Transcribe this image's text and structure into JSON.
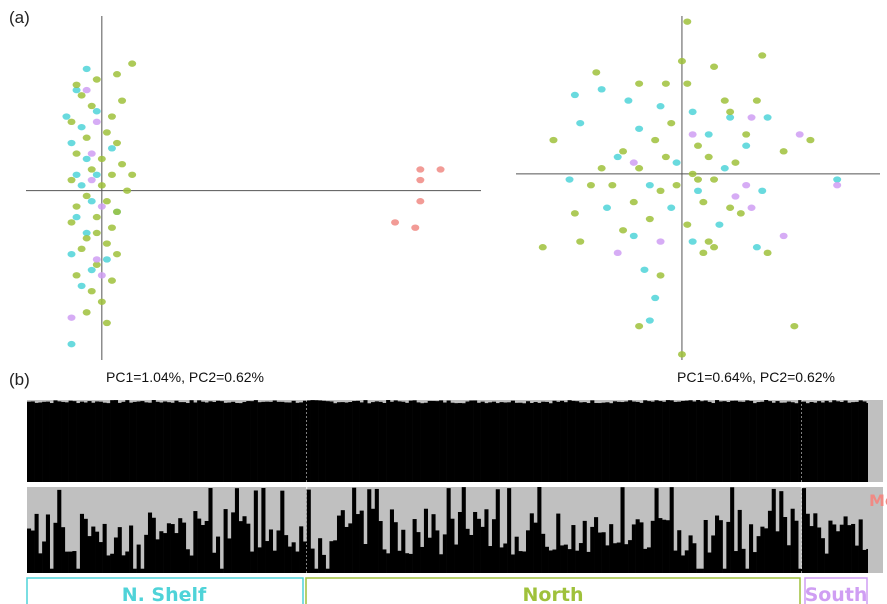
{
  "panels": {
    "a": "(a)",
    "b": "(b)"
  },
  "colors": {
    "nshelf": "#4fd3d8",
    "north": "#9fc13b",
    "south": "#cf9ef3",
    "me": "#f08a84",
    "bar_dark": "#000000",
    "bar_light": "#c0c0c0",
    "divider": "#ffffff"
  },
  "regions": {
    "nshelf": "N. Shelf",
    "north": "North",
    "south": "South",
    "me": "Me"
  },
  "chart_data": [
    {
      "type": "scatter",
      "annotation": "PC1=1.04%, PC2=0.62%",
      "xlabel": "",
      "ylabel": "",
      "note_axes": "crosshair axes at origin, no ticks",
      "xlim": [
        -1.5,
        7.5
      ],
      "ylim": [
        -3.2,
        3.3
      ],
      "series": [
        {
          "group": "nshelf",
          "points": [
            [
              -0.5,
              1.9
            ],
            [
              -0.4,
              1.2
            ],
            [
              -0.6,
              0.9
            ],
            [
              -0.3,
              0.6
            ],
            [
              -0.5,
              0.3
            ],
            [
              -0.4,
              0.1
            ],
            [
              -0.2,
              -0.2
            ],
            [
              -0.5,
              -0.5
            ],
            [
              -0.3,
              -0.8
            ],
            [
              -0.6,
              -1.2
            ],
            [
              -0.2,
              -1.5
            ],
            [
              -0.4,
              -1.8
            ],
            [
              -0.6,
              -2.9
            ],
            [
              -0.1,
              1.5
            ],
            [
              -0.3,
              2.3
            ],
            [
              0.2,
              0.8
            ],
            [
              0.3,
              -0.4
            ],
            [
              0.1,
              -1.3
            ],
            [
              -0.7,
              1.4
            ],
            [
              -0.1,
              0.3
            ]
          ]
        },
        {
          "group": "north",
          "points": [
            [
              -0.1,
              2.1
            ],
            [
              0.3,
              2.2
            ],
            [
              -0.4,
              1.8
            ],
            [
              -0.2,
              1.6
            ],
            [
              0.2,
              1.4
            ],
            [
              -0.6,
              1.3
            ],
            [
              0.1,
              1.1
            ],
            [
              -0.3,
              1.0
            ],
            [
              0.3,
              0.9
            ],
            [
              -0.5,
              0.7
            ],
            [
              0.0,
              0.6
            ],
            [
              0.4,
              0.5
            ],
            [
              -0.2,
              0.4
            ],
            [
              0.2,
              0.3
            ],
            [
              -0.6,
              0.2
            ],
            [
              0.0,
              0.1
            ],
            [
              0.5,
              0.0
            ],
            [
              -0.3,
              -0.1
            ],
            [
              0.1,
              -0.2
            ],
            [
              -0.5,
              -0.3
            ],
            [
              0.3,
              -0.4
            ],
            [
              -0.1,
              -0.5
            ],
            [
              -0.6,
              -0.6
            ],
            [
              0.2,
              -0.7
            ],
            [
              -0.3,
              -0.9
            ],
            [
              0.1,
              -1.0
            ],
            [
              -0.4,
              -1.1
            ],
            [
              0.3,
              -1.2
            ],
            [
              -0.1,
              -1.4
            ],
            [
              -0.5,
              -1.6
            ],
            [
              0.2,
              -1.7
            ],
            [
              -0.2,
              -1.9
            ],
            [
              0.0,
              -2.1
            ],
            [
              -0.3,
              -2.3
            ],
            [
              0.1,
              -2.5
            ],
            [
              0.6,
              2.4
            ],
            [
              -0.5,
              2.0
            ],
            [
              0.4,
              1.7
            ],
            [
              -0.1,
              -0.8
            ],
            [
              0.6,
              0.3
            ]
          ]
        },
        {
          "group": "south",
          "points": [
            [
              -0.1,
              1.3
            ],
            [
              -0.2,
              0.7
            ],
            [
              0.0,
              -0.3
            ],
            [
              -0.1,
              -1.3
            ],
            [
              0.0,
              -1.6
            ],
            [
              -0.6,
              -2.4
            ],
            [
              -0.2,
              0.2
            ],
            [
              -0.3,
              1.9
            ]
          ]
        },
        {
          "group": "me",
          "points": [
            [
              6.3,
              0.4
            ],
            [
              6.7,
              0.4
            ],
            [
              6.3,
              0.2
            ],
            [
              6.3,
              -0.2
            ],
            [
              6.2,
              -0.7
            ],
            [
              5.8,
              -0.6
            ]
          ]
        }
      ]
    },
    {
      "type": "scatter",
      "annotation": "PC1=0.64%, PC2=0.62%",
      "xlabel": "",
      "ylabel": "",
      "note_axes": "crosshair axes at origin, no ticks",
      "xlim": [
        -3.1,
        3.7
      ],
      "ylim": [
        -3.3,
        2.8
      ],
      "series": [
        {
          "group": "nshelf",
          "points": [
            [
              -1.5,
              1.5
            ],
            [
              -1.0,
              1.3
            ],
            [
              -0.4,
              1.2
            ],
            [
              0.2,
              1.1
            ],
            [
              0.9,
              1.0
            ],
            [
              1.6,
              1.0
            ],
            [
              -1.9,
              0.9
            ],
            [
              -0.8,
              0.8
            ],
            [
              0.5,
              0.7
            ],
            [
              1.2,
              0.5
            ],
            [
              -1.2,
              0.3
            ],
            [
              -0.1,
              0.2
            ],
            [
              0.8,
              0.1
            ],
            [
              -2.1,
              -0.1
            ],
            [
              -0.6,
              -0.2
            ],
            [
              0.3,
              -0.3
            ],
            [
              1.5,
              -0.3
            ],
            [
              -1.4,
              -0.6
            ],
            [
              -0.2,
              -0.6
            ],
            [
              0.7,
              -0.9
            ],
            [
              -0.9,
              -1.1
            ],
            [
              0.2,
              -1.2
            ],
            [
              1.4,
              -1.3
            ],
            [
              -0.7,
              -1.7
            ],
            [
              -0.5,
              -2.2
            ],
            [
              -0.6,
              -2.6
            ],
            [
              2.9,
              -0.1
            ],
            [
              -2.0,
              1.4
            ]
          ]
        },
        {
          "group": "north",
          "points": [
            [
              0.0,
              2.0
            ],
            [
              0.1,
              1.6
            ],
            [
              0.9,
              1.1
            ],
            [
              -0.2,
              0.9
            ],
            [
              -0.5,
              0.6
            ],
            [
              0.3,
              0.5
            ],
            [
              -1.1,
              0.4
            ],
            [
              -0.3,
              0.3
            ],
            [
              0.5,
              0.3
            ],
            [
              1.0,
              0.2
            ],
            [
              -0.8,
              0.1
            ],
            [
              0.2,
              0.0
            ],
            [
              0.6,
              -0.1
            ],
            [
              -1.7,
              -0.2
            ],
            [
              -0.4,
              -0.3
            ],
            [
              0.4,
              -0.5
            ],
            [
              -0.9,
              -0.5
            ],
            [
              0.9,
              -0.6
            ],
            [
              -2.0,
              -0.7
            ],
            [
              -0.6,
              -0.8
            ],
            [
              0.1,
              -0.9
            ],
            [
              0.6,
              -1.3
            ],
            [
              -1.1,
              -1.0
            ],
            [
              -1.9,
              -1.2
            ],
            [
              0.4,
              -1.4
            ],
            [
              1.6,
              -1.4
            ],
            [
              -0.4,
              -1.8
            ],
            [
              -0.8,
              -2.7
            ],
            [
              0.0,
              -3.2
            ],
            [
              2.1,
              -2.7
            ],
            [
              1.2,
              0.7
            ],
            [
              -2.4,
              0.6
            ],
            [
              -1.6,
              1.8
            ],
            [
              0.6,
              1.9
            ],
            [
              1.4,
              1.3
            ],
            [
              -0.1,
              -0.2
            ],
            [
              0.8,
              1.3
            ],
            [
              -1.3,
              -0.2
            ],
            [
              1.9,
              0.4
            ],
            [
              -0.3,
              1.6
            ],
            [
              0.3,
              -0.1
            ],
            [
              -1.5,
              0.1
            ],
            [
              0.5,
              -1.2
            ],
            [
              2.4,
              0.6
            ],
            [
              -2.6,
              -1.3
            ],
            [
              -0.8,
              1.6
            ],
            [
              1.1,
              -0.7
            ],
            [
              0.1,
              2.7
            ],
            [
              1.5,
              2.1
            ]
          ]
        },
        {
          "group": "south",
          "points": [
            [
              1.3,
              1.0
            ],
            [
              0.2,
              0.7
            ],
            [
              -0.9,
              0.2
            ],
            [
              1.0,
              -0.4
            ],
            [
              1.3,
              -0.6
            ],
            [
              -0.4,
              -1.2
            ],
            [
              1.9,
              -1.1
            ],
            [
              2.9,
              -0.2
            ],
            [
              -1.2,
              -1.4
            ],
            [
              2.2,
              0.7
            ],
            [
              1.2,
              -0.2
            ]
          ]
        }
      ]
    },
    {
      "type": "bar",
      "stacked": true,
      "ylim": [
        0,
        1
      ],
      "colors_by_cluster": [
        "bar_dark",
        "bar_light"
      ],
      "groups": [
        "nshelf",
        "north",
        "south"
      ],
      "group_sizes": [
        74,
        131,
        18
      ],
      "note": "K=2 ancestry proportions (dark cluster), all individuals near 0.97-1.0"
    },
    {
      "type": "bar",
      "stacked": true,
      "ylim": [
        0,
        1
      ],
      "colors_by_cluster": [
        "bar_dark",
        "bar_light"
      ],
      "groups": [
        "nshelf",
        "north",
        "south"
      ],
      "group_sizes": [
        74,
        131,
        18
      ],
      "note": "second ancestry plot, dark cluster proportions vary between ~0.1 and ~1.0"
    }
  ]
}
